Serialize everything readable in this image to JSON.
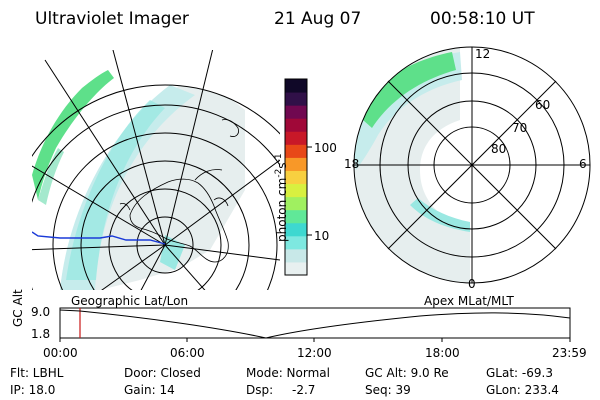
{
  "header": {
    "title": "Ultraviolet Imager",
    "date": "21 Aug 07",
    "time": "00:58:10 UT"
  },
  "colorbar": {
    "label": "photon cm",
    "label_sup1": "-2",
    "label_s": "s",
    "label_sup2": "-1",
    "ticks": [
      "100",
      "10"
    ],
    "colors": [
      "#e8f0f0",
      "#c8e8e8",
      "#7ee8e0",
      "#3ed8d0",
      "#60e898",
      "#a0f060",
      "#d8f040",
      "#f8d040",
      "#f89828",
      "#e84818",
      "#c81828",
      "#a00838",
      "#700850",
      "#301048",
      "#100828"
    ]
  },
  "apex_map": {
    "mlt_labels": [
      "12",
      "18",
      "6",
      "0"
    ],
    "mlat_labels": [
      "60",
      "70",
      "80"
    ]
  },
  "timeline": {
    "left_title": "Geographic Lat/Lon",
    "right_title": "Apex MLat/MLT",
    "axis_label": "GC Alt",
    "y_ticks": [
      "9.0",
      "1.8"
    ],
    "x_ticks": [
      "00:00",
      "06:00",
      "12:00",
      "18:00",
      "23:59"
    ]
  },
  "info": {
    "flt": "Flt: LBHL",
    "ip": "IP: 18.0",
    "door": "Door: Closed",
    "gain": "Gain: 14",
    "mode": "Mode: Normal",
    "dsp": "Dsp:",
    "dsp_value": "-2.7",
    "gc_alt": "GC Alt: 9.0 Re",
    "seq": "Seq: 39",
    "glat": "GLat: -69.3",
    "glon": "GLon: 233.4"
  }
}
